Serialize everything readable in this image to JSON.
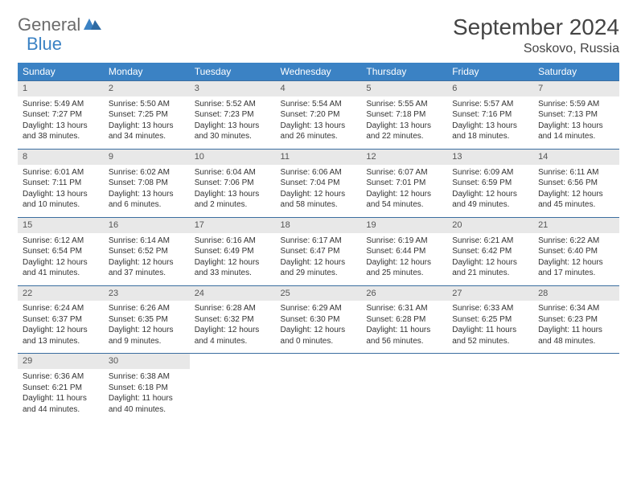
{
  "logo": {
    "text1": "General",
    "text2": "Blue"
  },
  "title": "September 2024",
  "location": "Soskovo, Russia",
  "colors": {
    "header_bg": "#3b82c4",
    "header_text": "#ffffff",
    "daynum_bg": "#e8e8e8",
    "border": "#3b6ea0",
    "logo_gray": "#6b6b6b",
    "logo_blue": "#3b82c4"
  },
  "weekdays": [
    "Sunday",
    "Monday",
    "Tuesday",
    "Wednesday",
    "Thursday",
    "Friday",
    "Saturday"
  ],
  "weeks": [
    [
      {
        "n": "1",
        "sr": "Sunrise: 5:49 AM",
        "ss": "Sunset: 7:27 PM",
        "dl": "Daylight: 13 hours and 38 minutes."
      },
      {
        "n": "2",
        "sr": "Sunrise: 5:50 AM",
        "ss": "Sunset: 7:25 PM",
        "dl": "Daylight: 13 hours and 34 minutes."
      },
      {
        "n": "3",
        "sr": "Sunrise: 5:52 AM",
        "ss": "Sunset: 7:23 PM",
        "dl": "Daylight: 13 hours and 30 minutes."
      },
      {
        "n": "4",
        "sr": "Sunrise: 5:54 AM",
        "ss": "Sunset: 7:20 PM",
        "dl": "Daylight: 13 hours and 26 minutes."
      },
      {
        "n": "5",
        "sr": "Sunrise: 5:55 AM",
        "ss": "Sunset: 7:18 PM",
        "dl": "Daylight: 13 hours and 22 minutes."
      },
      {
        "n": "6",
        "sr": "Sunrise: 5:57 AM",
        "ss": "Sunset: 7:16 PM",
        "dl": "Daylight: 13 hours and 18 minutes."
      },
      {
        "n": "7",
        "sr": "Sunrise: 5:59 AM",
        "ss": "Sunset: 7:13 PM",
        "dl": "Daylight: 13 hours and 14 minutes."
      }
    ],
    [
      {
        "n": "8",
        "sr": "Sunrise: 6:01 AM",
        "ss": "Sunset: 7:11 PM",
        "dl": "Daylight: 13 hours and 10 minutes."
      },
      {
        "n": "9",
        "sr": "Sunrise: 6:02 AM",
        "ss": "Sunset: 7:08 PM",
        "dl": "Daylight: 13 hours and 6 minutes."
      },
      {
        "n": "10",
        "sr": "Sunrise: 6:04 AM",
        "ss": "Sunset: 7:06 PM",
        "dl": "Daylight: 13 hours and 2 minutes."
      },
      {
        "n": "11",
        "sr": "Sunrise: 6:06 AM",
        "ss": "Sunset: 7:04 PM",
        "dl": "Daylight: 12 hours and 58 minutes."
      },
      {
        "n": "12",
        "sr": "Sunrise: 6:07 AM",
        "ss": "Sunset: 7:01 PM",
        "dl": "Daylight: 12 hours and 54 minutes."
      },
      {
        "n": "13",
        "sr": "Sunrise: 6:09 AM",
        "ss": "Sunset: 6:59 PM",
        "dl": "Daylight: 12 hours and 49 minutes."
      },
      {
        "n": "14",
        "sr": "Sunrise: 6:11 AM",
        "ss": "Sunset: 6:56 PM",
        "dl": "Daylight: 12 hours and 45 minutes."
      }
    ],
    [
      {
        "n": "15",
        "sr": "Sunrise: 6:12 AM",
        "ss": "Sunset: 6:54 PM",
        "dl": "Daylight: 12 hours and 41 minutes."
      },
      {
        "n": "16",
        "sr": "Sunrise: 6:14 AM",
        "ss": "Sunset: 6:52 PM",
        "dl": "Daylight: 12 hours and 37 minutes."
      },
      {
        "n": "17",
        "sr": "Sunrise: 6:16 AM",
        "ss": "Sunset: 6:49 PM",
        "dl": "Daylight: 12 hours and 33 minutes."
      },
      {
        "n": "18",
        "sr": "Sunrise: 6:17 AM",
        "ss": "Sunset: 6:47 PM",
        "dl": "Daylight: 12 hours and 29 minutes."
      },
      {
        "n": "19",
        "sr": "Sunrise: 6:19 AM",
        "ss": "Sunset: 6:44 PM",
        "dl": "Daylight: 12 hours and 25 minutes."
      },
      {
        "n": "20",
        "sr": "Sunrise: 6:21 AM",
        "ss": "Sunset: 6:42 PM",
        "dl": "Daylight: 12 hours and 21 minutes."
      },
      {
        "n": "21",
        "sr": "Sunrise: 6:22 AM",
        "ss": "Sunset: 6:40 PM",
        "dl": "Daylight: 12 hours and 17 minutes."
      }
    ],
    [
      {
        "n": "22",
        "sr": "Sunrise: 6:24 AM",
        "ss": "Sunset: 6:37 PM",
        "dl": "Daylight: 12 hours and 13 minutes."
      },
      {
        "n": "23",
        "sr": "Sunrise: 6:26 AM",
        "ss": "Sunset: 6:35 PM",
        "dl": "Daylight: 12 hours and 9 minutes."
      },
      {
        "n": "24",
        "sr": "Sunrise: 6:28 AM",
        "ss": "Sunset: 6:32 PM",
        "dl": "Daylight: 12 hours and 4 minutes."
      },
      {
        "n": "25",
        "sr": "Sunrise: 6:29 AM",
        "ss": "Sunset: 6:30 PM",
        "dl": "Daylight: 12 hours and 0 minutes."
      },
      {
        "n": "26",
        "sr": "Sunrise: 6:31 AM",
        "ss": "Sunset: 6:28 PM",
        "dl": "Daylight: 11 hours and 56 minutes."
      },
      {
        "n": "27",
        "sr": "Sunrise: 6:33 AM",
        "ss": "Sunset: 6:25 PM",
        "dl": "Daylight: 11 hours and 52 minutes."
      },
      {
        "n": "28",
        "sr": "Sunrise: 6:34 AM",
        "ss": "Sunset: 6:23 PM",
        "dl": "Daylight: 11 hours and 48 minutes."
      }
    ],
    [
      {
        "n": "29",
        "sr": "Sunrise: 6:36 AM",
        "ss": "Sunset: 6:21 PM",
        "dl": "Daylight: 11 hours and 44 minutes."
      },
      {
        "n": "30",
        "sr": "Sunrise: 6:38 AM",
        "ss": "Sunset: 6:18 PM",
        "dl": "Daylight: 11 hours and 40 minutes."
      },
      null,
      null,
      null,
      null,
      null
    ]
  ]
}
